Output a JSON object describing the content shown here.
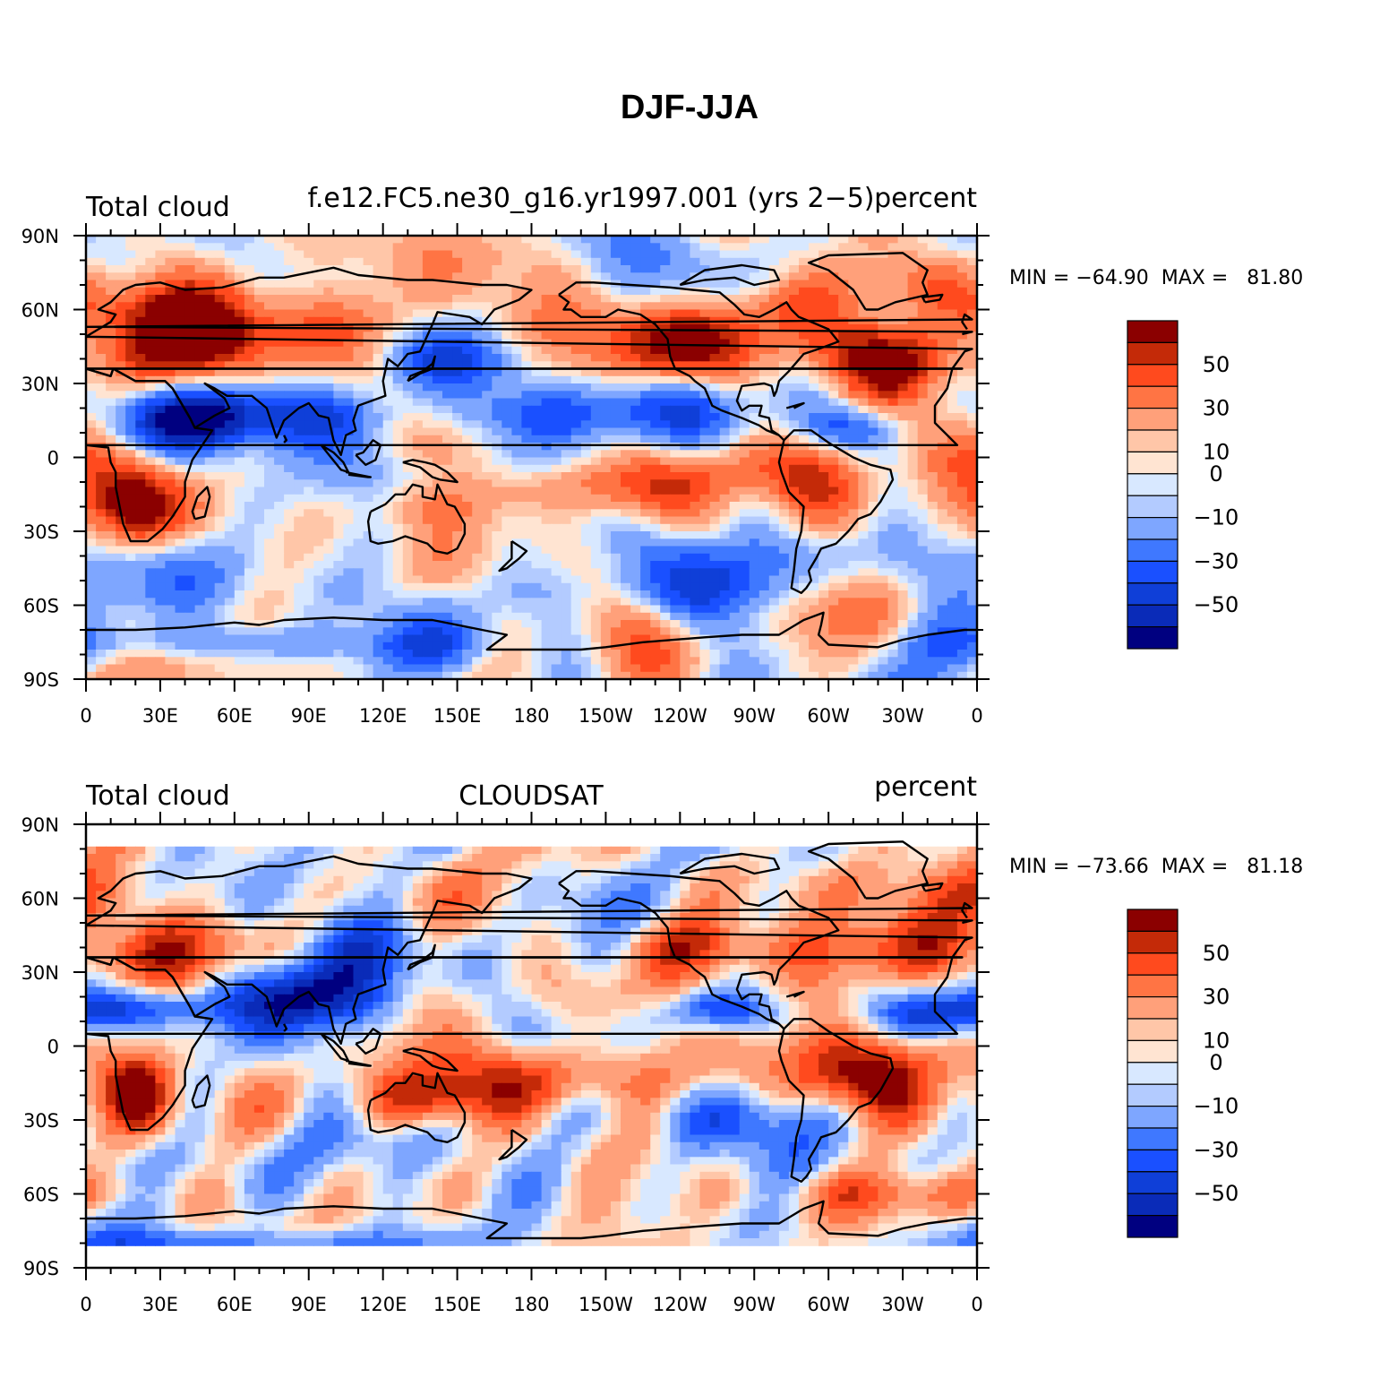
{
  "title": "DJF-JJA",
  "colormap": {
    "levels": [
      -60,
      -50,
      -40,
      -30,
      -20,
      -10,
      -5,
      0,
      5,
      10,
      20,
      30,
      40,
      50,
      60
    ],
    "colors": [
      "#000080",
      "#0a2bb8",
      "#0f3fd8",
      "#1a50ff",
      "#3f78ff",
      "#7ea6ff",
      "#b3cbff",
      "#d8e8ff",
      "#ffe4d2",
      "#ffc6a8",
      "#ffa07a",
      "#ff7444",
      "#ff4a1e",
      "#c42a08",
      "#8b0000"
    ],
    "tick_labels": [
      "50",
      "30",
      "10",
      "0",
      "−10",
      "−30",
      "−50"
    ]
  },
  "lat_ticks": [
    "90N",
    "60N",
    "30N",
    "0",
    "30S",
    "60S",
    "90S"
  ],
  "lon_ticks": [
    "0",
    "30E",
    "60E",
    "90E",
    "120E",
    "150E",
    "180",
    "150W",
    "120W",
    "90W",
    "60W",
    "30W",
    "0"
  ],
  "panels": [
    {
      "left_label": "Total cloud",
      "center_label": "f.e12.FC5.ne30_g16.yr1997.001 (yrs 2−5)",
      "right_label": "percent",
      "min_text": "MIN = −64.90",
      "max_text": "MAX =   81.80",
      "lat_range": [
        -90,
        90
      ],
      "lon_range": [
        0,
        360
      ]
    },
    {
      "left_label": "Total cloud",
      "center_label": "CLOUDSAT",
      "right_label": "percent",
      "min_text": "MIN = −73.66",
      "max_text": "MAX =   81.18",
      "lat_range": [
        -90,
        90
      ],
      "lon_range": [
        0,
        360
      ]
    }
  ]
}
